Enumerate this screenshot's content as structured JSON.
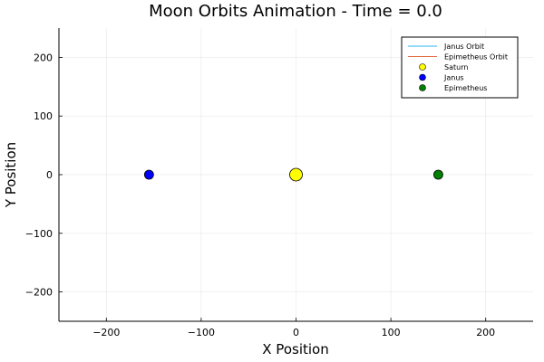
{
  "chart_data": {
    "type": "scatter",
    "title": "Moon Orbits Animation - Time = 0.0",
    "xlabel": "X Position",
    "ylabel": "Y Position",
    "xlim": [
      -250,
      250
    ],
    "ylim": [
      -250,
      250
    ],
    "x_ticks": [
      -200,
      -100,
      0,
      100,
      200
    ],
    "y_ticks": [
      -200,
      -100,
      0,
      100,
      200
    ],
    "x_tick_labels": [
      "−200",
      "−100",
      "0",
      "100",
      "200"
    ],
    "y_tick_labels": [
      "−200",
      "−100",
      "0",
      "100",
      "200"
    ],
    "grid": true,
    "legend_position": "top-right",
    "series": [
      {
        "name": "Janus Orbit",
        "kind": "line",
        "color": "#2cb3f0",
        "x": [],
        "y": []
      },
      {
        "name": "Epimetheus Orbit",
        "kind": "line",
        "color": "#e2683c",
        "x": [],
        "y": []
      },
      {
        "name": "Saturn",
        "kind": "point",
        "color": "#ffff00",
        "x": [
          0
        ],
        "y": [
          0
        ],
        "size": "large"
      },
      {
        "name": "Janus",
        "kind": "point",
        "color": "#0000ff",
        "x": [
          -155
        ],
        "y": [
          0
        ],
        "size": "normal"
      },
      {
        "name": "Epimetheus",
        "kind": "point",
        "color": "#008000",
        "x": [
          150
        ],
        "y": [
          0
        ],
        "size": "normal"
      }
    ]
  }
}
